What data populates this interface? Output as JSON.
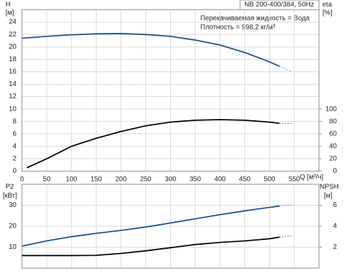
{
  "chart_data": [
    {
      "type": "line",
      "title": "NB 200-400/384, 50Hz",
      "notes": [
        "Перекачиваемая жидкость = Вода",
        "Плотность = 998.2 кг/м³"
      ],
      "y_label": [
        "H",
        "[м]"
      ],
      "y2_label": [
        "eta",
        "[%]"
      ],
      "x_label": "Q [м³/ч]",
      "xlim": [
        0,
        600
      ],
      "xticks": [
        0,
        50,
        100,
        150,
        200,
        250,
        300,
        350,
        400,
        450,
        500,
        550
      ],
      "show_xtick_labels": true,
      "ylim": [
        0,
        26
      ],
      "yticks": [
        0,
        2,
        4,
        6,
        8,
        10,
        12,
        14,
        16,
        18,
        20,
        22,
        24
      ],
      "y2lim": [
        0,
        260
      ],
      "y2ticks": [
        0,
        20,
        40,
        60,
        80,
        100
      ],
      "grid": true,
      "series": [
        {
          "color": "#1f4e8c",
          "x": [
            0,
            50,
            100,
            150,
            200,
            250,
            300,
            350,
            400,
            450,
            500,
            520
          ],
          "values": [
            21.4,
            21.7,
            21.95,
            22.1,
            22.15,
            22.0,
            21.7,
            21.1,
            20.3,
            19.1,
            17.6,
            16.9
          ]
        },
        {
          "color": "#1f4e8c",
          "dash": true,
          "x": [
            520,
            545
          ],
          "values": [
            16.9,
            16.0
          ]
        },
        {
          "color": "#000000",
          "axis": "y2",
          "x": [
            10,
            50,
            100,
            150,
            200,
            250,
            300,
            350,
            400,
            450,
            500,
            520
          ],
          "values": [
            5.5,
            20,
            40,
            53,
            64,
            73,
            79,
            82,
            83,
            82,
            79,
            77
          ]
        },
        {
          "color": "#000000",
          "axis": "y2",
          "dash": true,
          "x": [
            520,
            545
          ],
          "values": [
            77,
            77
          ]
        }
      ]
    },
    {
      "type": "line",
      "y_label": [
        "P2",
        "[кВт]"
      ],
      "y2_label": [
        "NPSH",
        "[м]"
      ],
      "xlim": [
        0,
        600
      ],
      "xticks": [
        0,
        50,
        100,
        150,
        200,
        250,
        300,
        350,
        400,
        450,
        500,
        550
      ],
      "show_xtick_labels": false,
      "ylim": [
        0,
        40
      ],
      "yticks": [
        10,
        20,
        30
      ],
      "y2lim": [
        0,
        8
      ],
      "y2ticks": [
        2,
        4,
        6
      ],
      "grid": true,
      "series": [
        {
          "color": "#1f4e8c",
          "x": [
            0,
            50,
            100,
            150,
            200,
            250,
            300,
            350,
            400,
            450,
            500,
            520
          ],
          "values": [
            10.5,
            13,
            15,
            16.6,
            18,
            19.6,
            21.5,
            23.5,
            25.5,
            27.3,
            29,
            29.6
          ]
        },
        {
          "color": "#1f4e8c",
          "dash": true,
          "x": [
            520,
            545
          ],
          "values": [
            29.6,
            30.2
          ]
        },
        {
          "color": "#000000",
          "axis": "y2",
          "x": [
            0,
            50,
            100,
            150,
            200,
            250,
            300,
            350,
            400,
            450,
            500,
            520
          ],
          "values": [
            1.2,
            1.2,
            1.2,
            1.22,
            1.4,
            1.65,
            1.95,
            2.25,
            2.45,
            2.6,
            2.8,
            2.95
          ]
        },
        {
          "color": "#000000",
          "axis": "y2",
          "dash": true,
          "x": [
            520,
            545
          ],
          "values": [
            2.95,
            3.1
          ]
        }
      ]
    }
  ]
}
